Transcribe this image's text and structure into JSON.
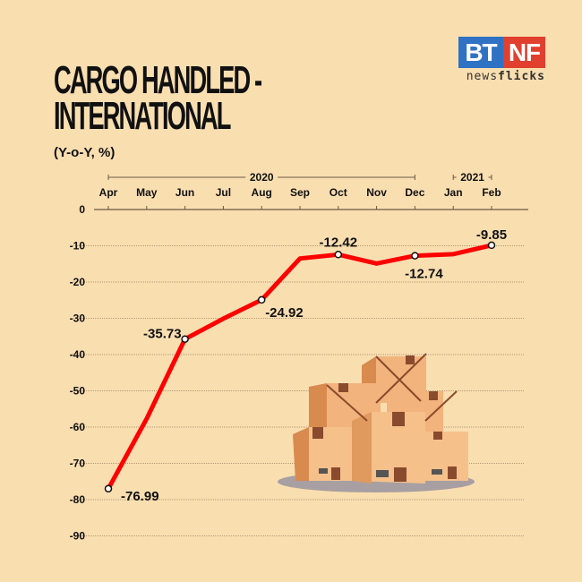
{
  "title_line1": "CARGO HANDLED -",
  "title_line2": "INTERNATIONAL",
  "subtitle": "(Y-o-Y, %)",
  "logo": {
    "left": "BT",
    "right": "NF",
    "text_light": "news",
    "text_bold": "flicks"
  },
  "colors": {
    "background": "#f9deb0",
    "line": "#ff0000",
    "brand_blue": "#2f72c4",
    "brand_red": "#e0402d"
  },
  "chart_data": {
    "type": "line",
    "title": "CARGO HANDLED - INTERNATIONAL",
    "subtitle": "(Y-o-Y, %)",
    "categories": [
      "Apr",
      "May",
      "Jun",
      "Jul",
      "Aug",
      "Sep",
      "Oct",
      "Nov",
      "Dec",
      "Jan",
      "Feb"
    ],
    "year_groups": [
      {
        "label": "2020",
        "from": "Apr",
        "to": "Dec"
      },
      {
        "label": "2021",
        "from": "Jan",
        "to": "Feb"
      }
    ],
    "values": [
      -76.99,
      -57.7,
      -35.73,
      -30.1,
      -24.92,
      -13.5,
      -12.42,
      -14.9,
      -12.74,
      -12.3,
      -9.85
    ],
    "data_labels": {
      "Apr": "-76.99",
      "Jun": "-35.73",
      "Aug": "-24.92",
      "Oct": "-12.42",
      "Dec": "-12.74",
      "Feb": "-9.85"
    },
    "y_ticks": [
      0,
      -10,
      -20,
      -30,
      -40,
      -50,
      -60,
      -70,
      -80,
      -90
    ],
    "ylim": [
      -90,
      0
    ],
    "x_axis_position": "top",
    "grid": true,
    "icon": "cardboard-boxes-illustration"
  }
}
